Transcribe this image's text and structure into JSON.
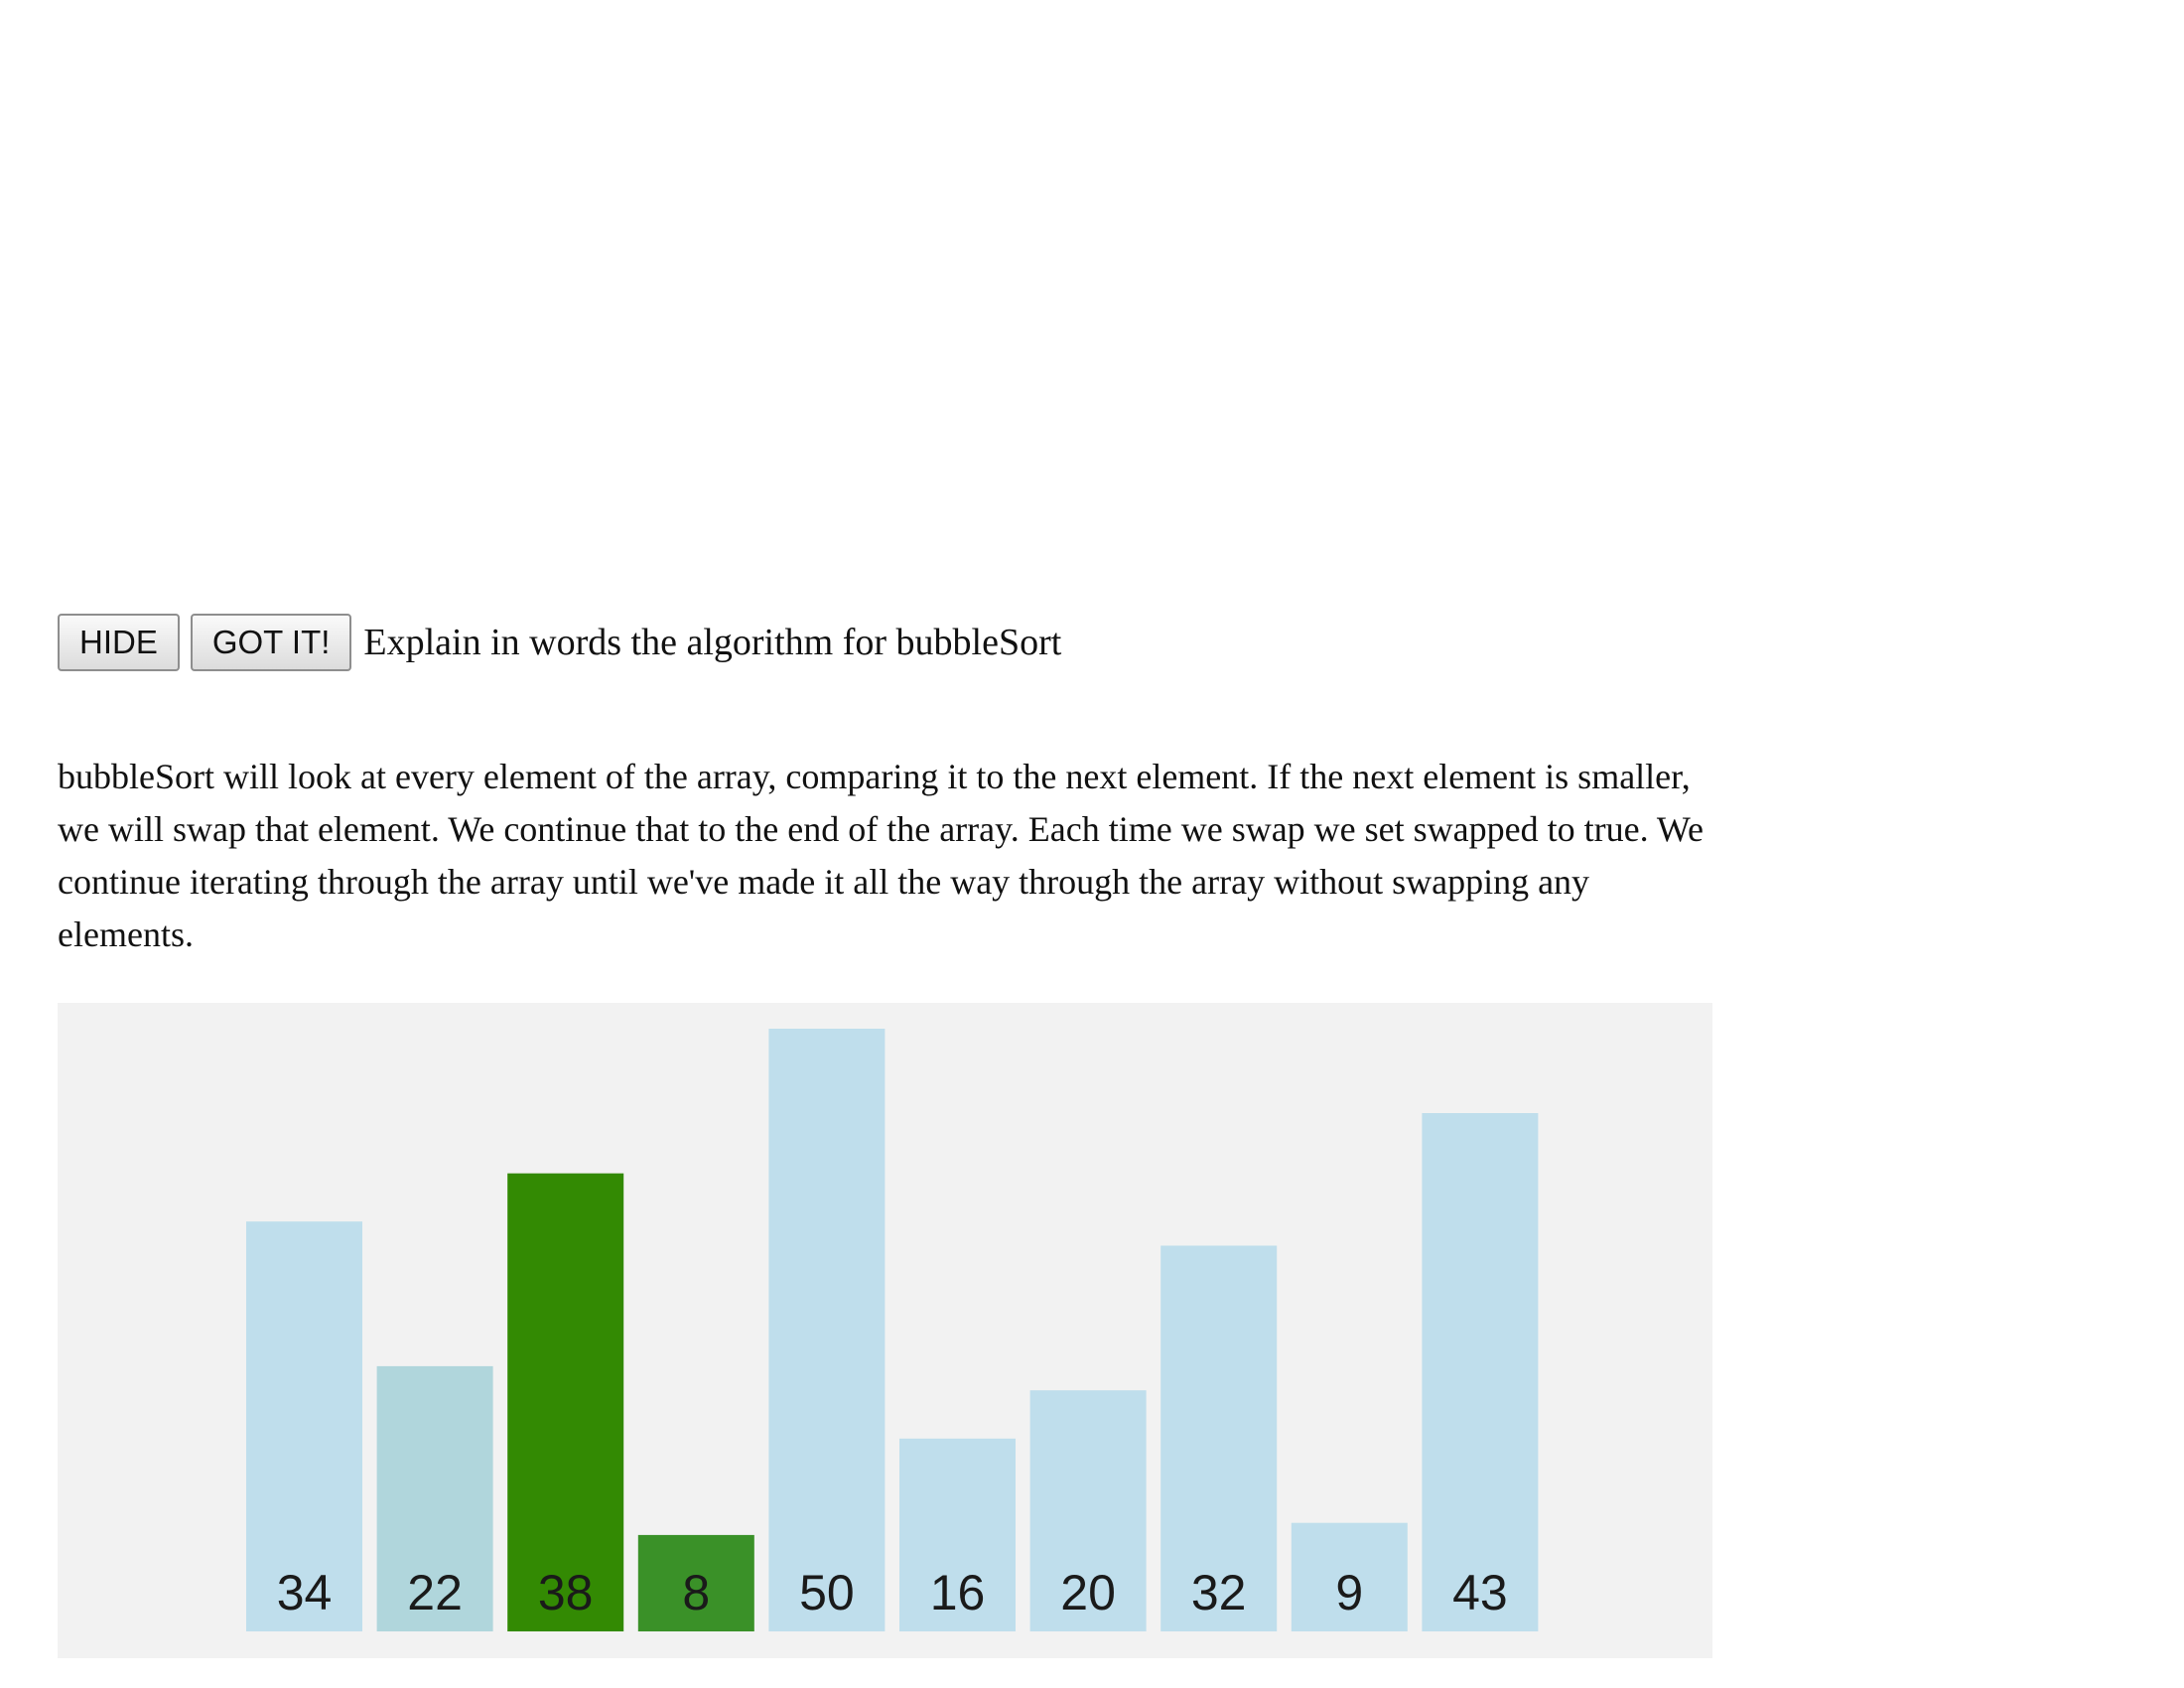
{
  "toolbar": {
    "hide_label": "HIDE",
    "gotit_label": "GOT IT!",
    "prompt": "Explain in words the algorithm for bubbleSort"
  },
  "explanation": "bubbleSort will look at every element of the array, comparing it to the next element. If the next element is smaller, we will swap that element. We continue that to the end of the array. Each time we swap we set swapped to true. We continue iterating through the array until we've made it all the way through the array without swapping any elements.",
  "colors": {
    "default_bar": "#bfdeec",
    "compared_bar": "#b0d6dc",
    "active_bar": "#338a03",
    "active_bar_light": "#3a9128",
    "background": "#f2f2f2"
  },
  "chart_data": {
    "type": "bar",
    "values": [
      34,
      22,
      38,
      8,
      50,
      16,
      20,
      32,
      9,
      43
    ],
    "states": [
      "default",
      "compared",
      "active",
      "active-light",
      "default",
      "default",
      "default",
      "default",
      "default",
      "default"
    ],
    "ylim": [
      0,
      50
    ]
  }
}
